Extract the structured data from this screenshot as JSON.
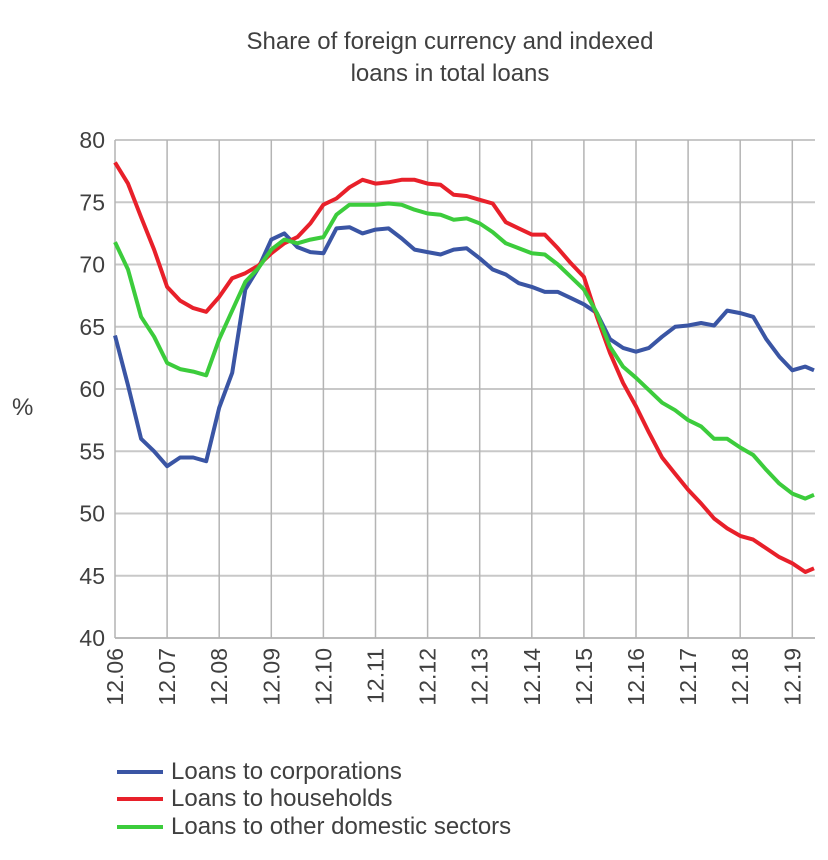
{
  "chart_data": {
    "type": "line",
    "title": "Share of foreign currency and indexed loans in total loans",
    "title_lines": [
      "Share of foreign currency and indexed",
      "loans in total loans"
    ],
    "ylabel": "%",
    "xlabel": "",
    "ylim": [
      40,
      80
    ],
    "yticks": [
      "40",
      "45",
      "50",
      "55",
      "60",
      "65",
      "70",
      "75",
      "80"
    ],
    "xticks": [
      "12.06",
      "12.07",
      "12.08",
      "12.09",
      "12.10",
      "12.11",
      "12.12",
      "12.13",
      "12.14",
      "12.15",
      "12.16",
      "12.17",
      "12.18",
      "12.19"
    ],
    "grid": true,
    "legend_position": "bottom",
    "x": [
      "12.06",
      "03.07",
      "06.07",
      "09.07",
      "12.07",
      "03.08",
      "06.08",
      "09.08",
      "12.08",
      "03.09",
      "06.09",
      "09.09",
      "12.09",
      "03.10",
      "06.10",
      "09.10",
      "12.10",
      "03.11",
      "06.11",
      "09.11",
      "12.11",
      "03.12",
      "06.12",
      "09.12",
      "12.12",
      "03.13",
      "06.13",
      "09.13",
      "12.13",
      "03.14",
      "06.14",
      "09.14",
      "12.14",
      "03.15",
      "06.15",
      "09.15",
      "12.15",
      "03.16",
      "06.16",
      "09.16",
      "12.16",
      "03.17",
      "06.17",
      "09.17",
      "12.17",
      "03.18",
      "06.18",
      "09.18",
      "12.18",
      "03.19",
      "06.19",
      "09.19",
      "12.19",
      "03.20",
      "05.20"
    ],
    "series": [
      {
        "name": "Loans to corporations",
        "color": "#3a55a4",
        "values": [
          64.3,
          60.3,
          56,
          55,
          53.8,
          54.5,
          54.5,
          54.2,
          58.5,
          61.3,
          68,
          69.7,
          72,
          72.5,
          71.4,
          71,
          70.9,
          72.9,
          73,
          72.5,
          72.8,
          72.9,
          72.1,
          71.2,
          71,
          70.8,
          71.2,
          71.3,
          70.5,
          69.6,
          69.2,
          68.5,
          68.2,
          67.8,
          67.8,
          67.3,
          66.8,
          66.1,
          64,
          63.3,
          63,
          63.3,
          64.2,
          65,
          65.1,
          65.3,
          65.1,
          66.3,
          66.1,
          65.8,
          64,
          62.6,
          61.5,
          61.8,
          61.5
        ]
      },
      {
        "name": "Loans to households",
        "color": "#e8202a",
        "values": [
          78.2,
          76.5,
          73.8,
          71.2,
          68.2,
          67.1,
          66.5,
          66.2,
          67.4,
          68.9,
          69.3,
          69.9,
          70.9,
          71.7,
          72.2,
          73.3,
          74.8,
          75.3,
          76.2,
          76.8,
          76.5,
          76.6,
          76.8,
          76.8,
          76.5,
          76.4,
          75.6,
          75.5,
          75.2,
          74.9,
          73.4,
          72.9,
          72.4,
          72.4,
          71.3,
          70.1,
          69,
          65.8,
          62.9,
          60.5,
          58.6,
          56.5,
          54.5,
          53.2,
          51.9,
          50.8,
          49.6,
          48.8,
          48.2,
          47.9,
          47.2,
          46.5,
          46,
          45.3,
          45.6
        ]
      },
      {
        "name": "Loans to other domestic sectors",
        "color": "#3ccc3c",
        "values": [
          71.8,
          69.6,
          65.8,
          64.2,
          62.1,
          61.6,
          61.4,
          61.1,
          64,
          66.3,
          68.6,
          69.7,
          71.2,
          72,
          71.7,
          72,
          72.2,
          74,
          74.8,
          74.8,
          74.8,
          74.9,
          74.8,
          74.4,
          74.1,
          74,
          73.6,
          73.7,
          73.3,
          72.6,
          71.7,
          71.3,
          70.9,
          70.8,
          70,
          69,
          68,
          66.1,
          63.4,
          61.8,
          60.9,
          59.9,
          58.9,
          58.3,
          57.5,
          57,
          56,
          56,
          55.3,
          54.7,
          53.5,
          52.4,
          51.6,
          51.2,
          51.5
        ]
      }
    ]
  }
}
